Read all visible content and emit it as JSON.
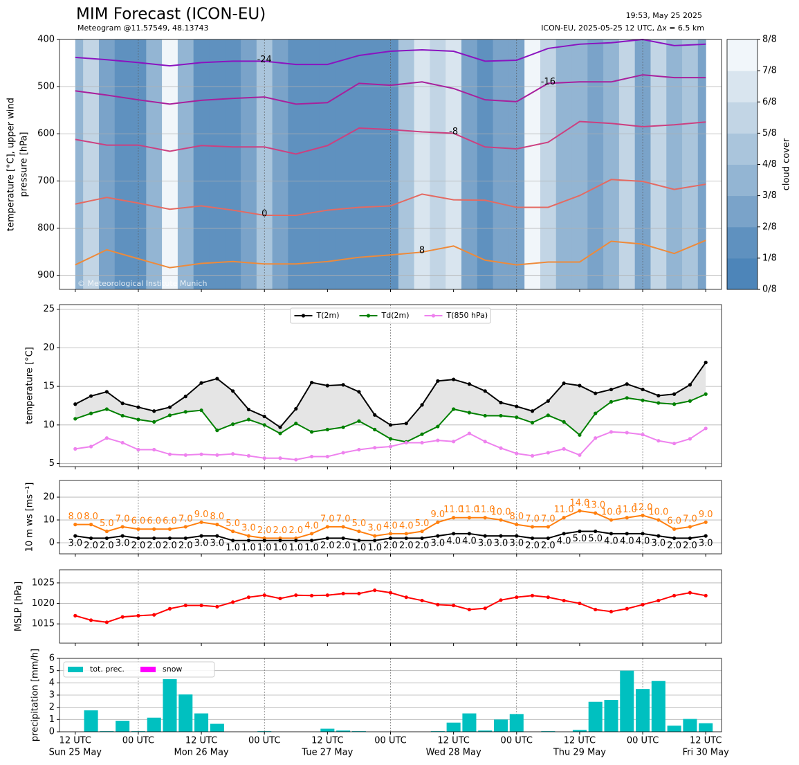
{
  "chart_data": [
    {
      "type": "contour",
      "title": "MIM Forecast (ICON-EU)",
      "subtitle": "Meteogram @11.57549, 48.13743",
      "run_time": "19:53, May 25 2025",
      "model_info": "ICON-EU, 2025-05-25 12 UTC, Δx = 6.5 km",
      "credit": "© Meteorological Institute Munich",
      "ylabel": [
        "temperature [°C], upper wind",
        "pressure [hPa]"
      ],
      "ylim": [
        930,
        400
      ],
      "yticks": [
        400,
        500,
        600,
        700,
        800,
        900
      ],
      "grid": true,
      "cloud_cover": [
        3,
        5,
        2,
        1,
        1,
        3,
        7,
        3,
        1,
        1,
        1,
        2,
        4,
        2,
        1,
        1,
        1,
        1,
        1,
        1,
        1,
        4,
        6,
        5,
        6,
        2,
        1,
        2,
        2,
        7,
        5,
        3,
        3,
        2,
        3,
        5,
        2,
        5,
        3,
        4,
        2
      ],
      "colorbar": {
        "label": "cloud cover",
        "lim": [
          0,
          8
        ],
        "colors": [
          "#4d85b9",
          "#5f91bf",
          "#7aa3c9",
          "#93b5d3",
          "#aac5dc",
          "#c2d5e5",
          "#d9e5ef",
          "#f1f6fa"
        ],
        "ticks": [
          {
            "value": 0,
            "label": "0/8"
          },
          {
            "value": 1,
            "label": "1/8"
          },
          {
            "value": 2,
            "label": "2/8"
          },
          {
            "value": 3,
            "label": "3/8"
          },
          {
            "value": 4,
            "label": "4/8"
          },
          {
            "value": 5,
            "label": "5/8"
          },
          {
            "value": 6,
            "label": "6/8"
          },
          {
            "value": 7,
            "label": "7/8"
          },
          {
            "value": 8,
            "label": "8/8"
          }
        ]
      },
      "isotherm_x": [
        "2025-05-25 12:00",
        "2025-05-25 18:00",
        "2025-05-26 00:00",
        "2025-05-26 06:00",
        "2025-05-26 12:00",
        "2025-05-26 18:00",
        "2025-05-27 00:00",
        "2025-05-27 06:00",
        "2025-05-27 12:00",
        "2025-05-27 18:00",
        "2025-05-28 00:00",
        "2025-05-28 06:00",
        "2025-05-28 12:00",
        "2025-05-28 18:00",
        "2025-05-29 00:00",
        "2025-05-29 06:00",
        "2025-05-29 12:00",
        "2025-05-29 18:00",
        "2025-05-30 00:00",
        "2025-05-30 06:00",
        "2025-05-30 12:00"
      ],
      "isotherms": [
        {
          "name": "-24",
          "color": "#8a14c0",
          "values": [
            438,
            443,
            449,
            456,
            449,
            446,
            446,
            453,
            453,
            434,
            425,
            422,
            425,
            446,
            444,
            419,
            410,
            407,
            400,
            413,
            410
          ]
        },
        {
          "name": "-16",
          "color": "#a8209c",
          "values": [
            509,
            518,
            528,
            537,
            529,
            525,
            522,
            537,
            534,
            493,
            497,
            490,
            504,
            528,
            532,
            493,
            490,
            490,
            475,
            481,
            481
          ]
        },
        {
          "name": "-8",
          "color": "#cc4080",
          "values": [
            612,
            624,
            624,
            637,
            625,
            628,
            628,
            643,
            625,
            588,
            591,
            596,
            599,
            628,
            632,
            618,
            574,
            578,
            585,
            581,
            575
          ]
        },
        {
          "name": "0",
          "color": "#e46a62",
          "values": [
            749,
            735,
            747,
            760,
            753,
            762,
            773,
            773,
            762,
            756,
            753,
            728,
            740,
            741,
            756,
            756,
            731,
            697,
            701,
            718,
            707
          ]
        },
        {
          "name": "8",
          "color": "#ee8a3a",
          "values": [
            878,
            846,
            865,
            884,
            875,
            871,
            876,
            876,
            871,
            862,
            857,
            851,
            838,
            868,
            878,
            872,
            872,
            828,
            834,
            854,
            826
          ]
        }
      ]
    },
    {
      "type": "line",
      "ylabel": "temperature [°C]",
      "ylim": [
        4.6,
        25.6
      ],
      "yticks": [
        5,
        10,
        15,
        20,
        25
      ],
      "grid": true,
      "legend": "upper center",
      "shade_color": "#e5e5e5",
      "series": [
        {
          "name": "T(2m)",
          "color": "#000000",
          "values": [
            12.7,
            13.75,
            14.3,
            12.8,
            12.3,
            11.8,
            12.3,
            13.7,
            15.45,
            16.0,
            14.4,
            12.0,
            11.1,
            9.7,
            12.1,
            15.5,
            15.1,
            15.2,
            14.3,
            11.3,
            10.0,
            10.2,
            12.6,
            15.7,
            15.9,
            15.3,
            14.4,
            12.9,
            12.4,
            11.8,
            13.1,
            15.4,
            15.1,
            14.1,
            14.6,
            15.3,
            14.6,
            13.8,
            14.0,
            15.2,
            18.1
          ]
        },
        {
          "name": "Td(2m)",
          "color": "#008000",
          "values": [
            10.8,
            11.5,
            12.05,
            11.2,
            10.7,
            10.4,
            11.25,
            11.7,
            11.9,
            9.3,
            10.1,
            10.7,
            10.0,
            8.9,
            10.2,
            9.1,
            9.4,
            9.7,
            10.5,
            9.4,
            8.2,
            7.8,
            8.8,
            9.8,
            12.05,
            11.6,
            11.2,
            11.2,
            11.0,
            10.3,
            11.25,
            10.4,
            8.7,
            11.5,
            13.0,
            13.5,
            13.2,
            12.85,
            12.7,
            13.1,
            14.0
          ]
        },
        {
          "name": "T(850 hPa)",
          "color": "#ee82ee",
          "values": [
            6.9,
            7.2,
            8.3,
            7.7,
            6.8,
            6.8,
            6.2,
            6.1,
            6.2,
            6.1,
            6.25,
            6.0,
            5.7,
            5.7,
            5.5,
            5.9,
            5.9,
            6.4,
            6.8,
            7.05,
            7.2,
            7.7,
            7.7,
            8.0,
            7.85,
            8.9,
            7.85,
            7.0,
            6.3,
            6.0,
            6.4,
            6.9,
            6.1,
            8.3,
            9.1,
            9.0,
            8.75,
            7.95,
            7.6,
            8.2,
            9.55
          ]
        }
      ]
    },
    {
      "type": "line",
      "ylabel": "10 m ws [ms⁻¹]",
      "ylim": [
        -4.85,
        27.3
      ],
      "yticks": [
        0,
        10,
        20
      ],
      "grid": true,
      "series": [
        {
          "color": "#ff7f0e",
          "label_position": "above",
          "values": [
            8,
            8,
            5,
            7,
            6,
            6,
            6,
            7,
            9,
            8,
            5,
            3,
            2,
            2,
            2,
            4,
            7,
            7,
            5,
            3,
            4,
            4,
            5,
            9,
            11,
            11,
            11,
            10,
            8,
            7,
            7,
            11,
            14,
            13,
            10,
            11,
            12,
            10,
            6,
            7,
            9
          ],
          "value_labels": [
            "8.0",
            "8.0",
            "5.0",
            "7.0",
            "6.0",
            "6.0",
            "6.0",
            "7.0",
            "9.0",
            "8.0",
            "5.0",
            "3.0",
            "2.0",
            "2.0",
            "2.0",
            "4.0",
            "7.0",
            "7.0",
            "5.0",
            "3.0",
            "4.0",
            "4.0",
            "5.0",
            "9.0",
            "11.0",
            "11.0",
            "11.0",
            "10.0",
            "8.0",
            "7.0",
            "7.0",
            "11.0",
            "14.0",
            "13.0",
            "10.0",
            "11.0",
            "12.0",
            "10.0",
            "6.0",
            "7.0",
            "9.0"
          ]
        },
        {
          "color": "#000000",
          "label_position": "below",
          "values": [
            3,
            2,
            2,
            3,
            2,
            2,
            2,
            2,
            3,
            3,
            1,
            1,
            1,
            1,
            1,
            1,
            2,
            2,
            1,
            1,
            2,
            2,
            2,
            3,
            4,
            4,
            3,
            3,
            3,
            2,
            2,
            4,
            5,
            5,
            4,
            4,
            4,
            3,
            2,
            2,
            3
          ],
          "value_labels": [
            "3.0",
            "2.0",
            "2.0",
            "3.0",
            "2.0",
            "2.0",
            "2.0",
            "2.0",
            "3.0",
            "3.0",
            "1.0",
            "1.0",
            "1.0",
            "1.0",
            "1.0",
            "1.0",
            "2.0",
            "2.0",
            "1.0",
            "1.0",
            "2.0",
            "2.0",
            "2.0",
            "3.0",
            "4.0",
            "4.0",
            "3.0",
            "3.0",
            "3.0",
            "2.0",
            "2.0",
            "4.0",
            "5.0",
            "5.0",
            "4.0",
            "4.0",
            "4.0",
            "3.0",
            "2.0",
            "2.0",
            "3.0"
          ]
        }
      ]
    },
    {
      "type": "line",
      "ylabel": "MSLP [hPa]",
      "ylim": [
        1010.3,
        1028.2
      ],
      "yticks": [
        1015,
        1020,
        1025
      ],
      "grid": true,
      "series": [
        {
          "color": "#ff0000",
          "values": [
            1017.0,
            1015.9,
            1015.4,
            1016.7,
            1017.0,
            1017.2,
            1018.7,
            1019.5,
            1019.5,
            1019.2,
            1020.3,
            1021.5,
            1022.0,
            1021.2,
            1022.0,
            1021.9,
            1022.0,
            1022.4,
            1022.4,
            1023.2,
            1022.6,
            1021.5,
            1020.7,
            1019.7,
            1019.5,
            1018.5,
            1018.8,
            1020.8,
            1021.5,
            1021.9,
            1021.5,
            1020.7,
            1020.0,
            1018.5,
            1018.0,
            1018.7,
            1019.7,
            1020.7,
            1021.9,
            1022.6,
            1021.9
          ]
        }
      ]
    },
    {
      "type": "bar",
      "ylabel": "precipitation [mm/h]",
      "ylim": [
        0,
        6
      ],
      "yticks": [
        0,
        1,
        2,
        3,
        4,
        5,
        6
      ],
      "grid": true,
      "legend": "upper left",
      "x": [
        "2025-05-25 12:00",
        "2025-05-25 15:00",
        "2025-05-25 18:00",
        "2025-05-25 21:00",
        "2025-05-26 00:00",
        "2025-05-26 03:00",
        "2025-05-26 06:00",
        "2025-05-26 09:00",
        "2025-05-26 12:00",
        "2025-05-26 15:00",
        "2025-05-26 18:00",
        "2025-05-26 21:00",
        "2025-05-27 00:00",
        "2025-05-27 03:00",
        "2025-05-27 06:00",
        "2025-05-27 09:00",
        "2025-05-27 12:00",
        "2025-05-27 15:00",
        "2025-05-27 18:00",
        "2025-05-27 21:00",
        "2025-05-28 00:00",
        "2025-05-28 03:00",
        "2025-05-28 06:00",
        "2025-05-28 09:00",
        "2025-05-28 12:00",
        "2025-05-28 15:00",
        "2025-05-28 18:00",
        "2025-05-28 21:00",
        "2025-05-29 00:00",
        "2025-05-29 03:00",
        "2025-05-29 06:00",
        "2025-05-29 09:00",
        "2025-05-29 12:00",
        "2025-05-29 15:00",
        "2025-05-29 18:00",
        "2025-05-29 21:00",
        "2025-05-30 00:00",
        "2025-05-30 03:00",
        "2025-05-30 06:00",
        "2025-05-30 09:00",
        "2025-05-30 12:00"
      ],
      "xlim": [
        "2025-05-25 09:00",
        "2025-05-30 15:00"
      ],
      "xticks": [
        {
          "value": "2025-05-25 12:00",
          "label": "12 UTC"
        },
        {
          "value": "2025-05-26 00:00",
          "label": "00 UTC"
        },
        {
          "value": "2025-05-26 12:00",
          "label": "12 UTC"
        },
        {
          "value": "2025-05-27 00:00",
          "label": "00 UTC"
        },
        {
          "value": "2025-05-27 12:00",
          "label": "12 UTC"
        },
        {
          "value": "2025-05-28 00:00",
          "label": "00 UTC"
        },
        {
          "value": "2025-05-28 12:00",
          "label": "12 UTC"
        },
        {
          "value": "2025-05-29 00:00",
          "label": "00 UTC"
        },
        {
          "value": "2025-05-29 12:00",
          "label": "12 UTC"
        },
        {
          "value": "2025-05-30 00:00",
          "label": "00 UTC"
        },
        {
          "value": "2025-05-30 12:00",
          "label": "12 UTC"
        }
      ],
      "day_labels": [
        {
          "value": "2025-05-25 12:00",
          "label": "Sun 25 May"
        },
        {
          "value": "2025-05-26 12:00",
          "label": "Mon 26 May"
        },
        {
          "value": "2025-05-27 12:00",
          "label": "Tue 27 May"
        },
        {
          "value": "2025-05-28 12:00",
          "label": "Wed 28 May"
        },
        {
          "value": "2025-05-29 12:00",
          "label": "Thu 29 May"
        },
        {
          "value": "2025-05-30 12:00",
          "label": "Fri 30 May"
        }
      ],
      "series": [
        {
          "name": "tot. prec.",
          "color": "#00c0c0",
          "values": [
            null,
            1.75,
            0.05,
            0.9,
            0.05,
            1.15,
            4.3,
            3.05,
            1.5,
            0.65,
            0,
            0,
            0.05,
            0,
            0,
            0,
            0.25,
            0.1,
            0.05,
            0,
            0,
            0,
            0,
            0.05,
            0.75,
            1.5,
            0.1,
            1.0,
            1.45,
            0,
            0.05,
            0,
            0.15,
            2.45,
            2.6,
            5.0,
            3.5,
            4.15,
            0.5,
            1.05,
            0.7
          ]
        },
        {
          "name": "snow",
          "color": "#ff00ff",
          "values": [
            null,
            0,
            0,
            0,
            0,
            0,
            0,
            0,
            0,
            0,
            0,
            0,
            0,
            0,
            0,
            0,
            0,
            0,
            0,
            0,
            0,
            0,
            0,
            0,
            0,
            0,
            0,
            0,
            0,
            0,
            0,
            0,
            0,
            0,
            0,
            0,
            0,
            0,
            0,
            0,
            0
          ]
        }
      ]
    }
  ]
}
